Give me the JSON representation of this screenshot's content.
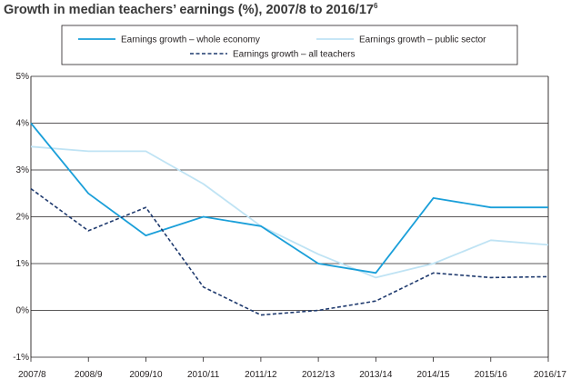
{
  "title": "Growth in median teachers’ earnings (%), 2007/8 to 2016/17",
  "title_footnote": "6",
  "chart_data": {
    "type": "line",
    "title": "Growth in median teachers’ earnings (%), 2007/8 to 2016/17",
    "xlabel": "",
    "ylabel": "",
    "x": [
      "2007/8",
      "2008/9",
      "2009/10",
      "2010/11",
      "2011/12",
      "2012/13",
      "2013/14",
      "2014/15",
      "2015/16",
      "2016/17"
    ],
    "ylim": [
      -1,
      5
    ],
    "yticks": [
      "5%",
      "4%",
      "3%",
      "2%",
      "1%",
      "0%",
      "-1%"
    ],
    "ytick_values": [
      5,
      4,
      3,
      2,
      1,
      0,
      -1
    ],
    "grid": "horizontal",
    "legend_position": "top",
    "series": [
      {
        "name": "Earnings growth – whole economy",
        "color": "#1a9fd9",
        "style": "solid",
        "values": [
          4.0,
          2.5,
          1.6,
          2.0,
          1.8,
          1.0,
          0.8,
          2.4,
          2.2,
          2.2
        ]
      },
      {
        "name": "Earnings growth – public sector",
        "color": "#bfe3f4",
        "style": "solid",
        "values": [
          3.5,
          3.4,
          3.4,
          2.7,
          1.8,
          1.2,
          0.7,
          1.0,
          1.5,
          1.4
        ]
      },
      {
        "name": "Earnings growth – all teachers",
        "color": "#1f3a6e",
        "style": "dashed",
        "values": [
          2.6,
          1.7,
          2.2,
          0.5,
          -0.1,
          0.0,
          0.2,
          0.8,
          0.7,
          0.72
        ]
      }
    ]
  }
}
